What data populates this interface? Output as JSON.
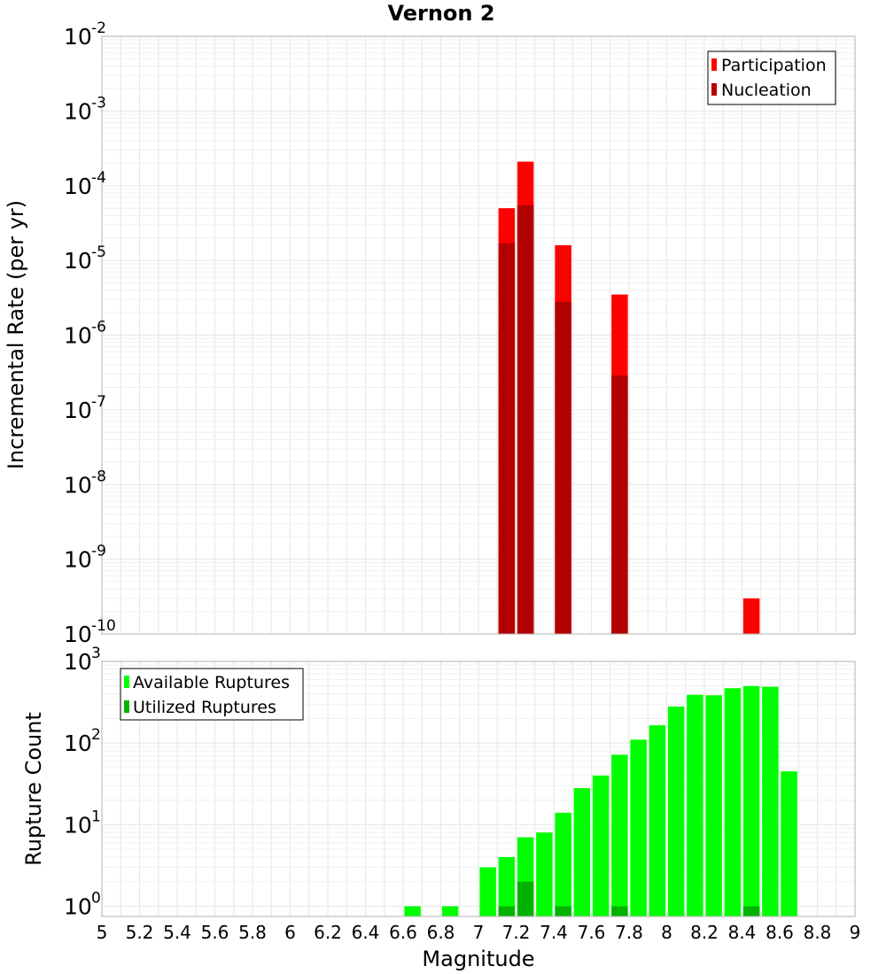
{
  "chart_data": [
    {
      "type": "bar",
      "title": "Vernon 2",
      "ylabel": "Incremental Rate (per yr)",
      "xlabel": "",
      "yscale": "log",
      "xlim": [
        5,
        9
      ],
      "ylim": [
        1e-10,
        0.01
      ],
      "legend_position": "top-right",
      "series": [
        {
          "name": "Participation",
          "color": "#ff0000",
          "x": [
            7.15,
            7.25,
            7.45,
            7.75,
            8.45
          ],
          "values": [
            5e-05,
            0.00021,
            1.6e-05,
            3.5e-06,
            3e-10
          ]
        },
        {
          "name": "Nucleation",
          "color": "#b30000",
          "x": [
            7.15,
            7.25,
            7.45,
            7.75
          ],
          "values": [
            1.7e-05,
            5.5e-05,
            2.8e-06,
            2.9e-07
          ]
        }
      ]
    },
    {
      "type": "bar",
      "title": "",
      "ylabel": "Rupture Count",
      "xlabel": "Magnitude",
      "yscale": "log",
      "xlim": [
        5,
        9
      ],
      "ylim": [
        0.75,
        1000
      ],
      "legend_position": "top-left",
      "x_ticks": [
        "5",
        "5.2",
        "5.4",
        "5.6",
        "5.8",
        "6",
        "6.2",
        "6.4",
        "6.6",
        "6.8",
        "7",
        "7.2",
        "7.4",
        "7.6",
        "7.8",
        "8",
        "8.2",
        "8.4",
        "8.6",
        "8.8",
        "9"
      ],
      "series": [
        {
          "name": "Available Ruptures",
          "color": "#00ff00",
          "x": [
            6.65,
            6.85,
            7.05,
            7.15,
            7.25,
            7.35,
            7.45,
            7.55,
            7.65,
            7.75,
            7.85,
            7.95,
            8.05,
            8.15,
            8.25,
            8.35,
            8.45,
            8.55,
            8.65
          ],
          "values": [
            1,
            1,
            3,
            4,
            7,
            8,
            14,
            28,
            40,
            72,
            110,
            165,
            280,
            390,
            385,
            470,
            500,
            490,
            45
          ]
        },
        {
          "name": "Utilized Ruptures",
          "color": "#00b300",
          "x": [
            7.15,
            7.25,
            7.45,
            7.75,
            8.45
          ],
          "values": [
            1,
            2,
            1,
            1,
            1
          ]
        }
      ]
    }
  ]
}
